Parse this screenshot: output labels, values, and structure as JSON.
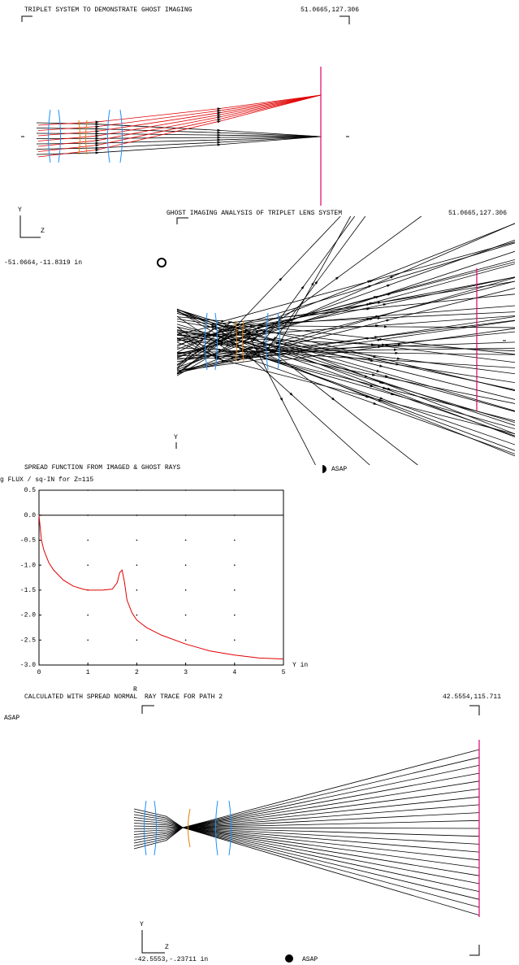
{
  "panels": [
    {
      "title": "TRIPLET SYSTEM TO DEMONSTRATE GHOST IMAGING",
      "coords": "51.0665,127.306",
      "axis_y": "Y",
      "axis_z": "Z",
      "origin": "-51.0664,-11.8319 in"
    },
    {
      "title": "GHOST IMAGING ANALYSIS OF TRIPLET LENS SYSTEM",
      "coords": "51.0665,127.306",
      "axis_y": "Y",
      "logo": "ASAP"
    },
    {
      "title": "RAY TRACE FOR PATH 2",
      "coords": "42.5554,115.711",
      "axis_y": "Y",
      "axis_z": "Z",
      "origin": "-42.5553,-.23711 in",
      "logo": "ASAP"
    }
  ],
  "chart_data": {
    "type": "line",
    "title": "SPREAD FUNCTION FROM IMAGED & GHOST RAYS",
    "y_label": "g FLUX / sq-IN for Z=115",
    "x_label": "R",
    "x_unit": "Y in",
    "footer": "CALCULATED WITH SPREAD NORMAL",
    "logo": "ASAP",
    "color": "#e00000",
    "x": [
      0,
      0.05,
      0.1,
      0.2,
      0.3,
      0.5,
      0.7,
      0.9,
      1.0,
      1.3,
      1.5,
      1.6,
      1.65,
      1.7,
      1.75,
      1.8,
      1.9,
      2.0,
      2.2,
      2.5,
      3.0,
      3.5,
      4.0,
      4.5,
      5.0
    ],
    "values": [
      0,
      -0.5,
      -0.7,
      -0.95,
      -1.1,
      -1.3,
      -1.42,
      -1.48,
      -1.5,
      -1.5,
      -1.48,
      -1.35,
      -1.15,
      -1.1,
      -1.35,
      -1.7,
      -1.95,
      -2.1,
      -2.25,
      -2.4,
      -2.58,
      -2.72,
      -2.8,
      -2.86,
      -2.88
    ],
    "xlim": [
      0,
      5
    ],
    "ylim": [
      -3.0,
      0.5
    ],
    "xticks": [
      0,
      1,
      2,
      3,
      4,
      5
    ],
    "yticks": [
      {
        "value": -3.0,
        "label": "-3.0"
      },
      -2.5,
      {
        "value": -2.0,
        "label": "-2.0"
      },
      -1.5,
      {
        "value": -1.0,
        "label": "-1.0"
      },
      -0.5,
      {
        "value": 0.0,
        "label": "0.0"
      },
      0.5
    ],
    "grid": true
  }
}
